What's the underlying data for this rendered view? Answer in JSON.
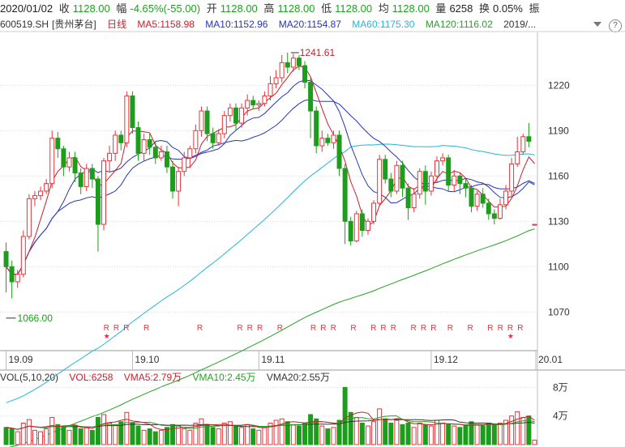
{
  "quote": {
    "date": "2020/01/02",
    "close_label": "收",
    "close": "1128.00",
    "change_label": "幅",
    "change": "-4.65%(-55.00)",
    "open_label": "开",
    "open": "1128.00",
    "high_label": "高",
    "high": "1128.00",
    "low_label": "低",
    "low": "1128.00",
    "avg_label": "均",
    "avg": "1128.00",
    "volume_label": "量",
    "volume": "6258",
    "turnover_label": "换",
    "turnover": "0.05%",
    "amplitude_label": "振"
  },
  "ma_bar": {
    "symbol": "600519.SH",
    "name": "[贵州茅台]",
    "period": "日线",
    "ma5": "MA5:1158.98",
    "ma10": "MA10:1152.96",
    "ma20": "MA20:1154.87",
    "ma60": "MA60:1175.30",
    "ma120": "MA120:1116.02",
    "date_short": "2019/...",
    "help": "?"
  },
  "volume_bar": {
    "params": "VOL(5,10,20)",
    "vol": "VOL:6258",
    "vma5": "VMA5:2.79万",
    "vma10": "VMA10:2.45万",
    "vma20": "VMA20:2.55万"
  },
  "colors": {
    "up": "#e8333a",
    "down": "#1c9d1c",
    "ma5": "#c8202a",
    "ma10": "#2536b8",
    "ma20": "#2536b8",
    "ma60": "#25b6d6",
    "ma120": "#23a323",
    "grid": "#dcdcdc"
  },
  "chart_data": {
    "type": "candlestick",
    "price_ticks": [
      1220,
      1190,
      1160,
      1130,
      1100,
      1070
    ],
    "price_range": [
      1045,
      1255
    ],
    "date_labels": [
      "19.09",
      "19.10",
      "19.11",
      "19.12",
      "20.01"
    ],
    "annotations": {
      "high": "1241.61",
      "low": "1066.00"
    },
    "volume_ticks": [
      "8万",
      "4万"
    ],
    "volume_range": [
      0,
      85000
    ],
    "marker": "R",
    "candles": [
      [
        1110,
        1100,
        1116,
        1083
      ],
      [
        1100,
        1090,
        1104,
        1079
      ],
      [
        1090,
        1095,
        1098,
        1086
      ],
      [
        1095,
        1120,
        1124,
        1093
      ],
      [
        1120,
        1145,
        1148,
        1118
      ],
      [
        1145,
        1147,
        1150,
        1140
      ],
      [
        1147,
        1150,
        1153,
        1144
      ],
      [
        1150,
        1155,
        1158,
        1148
      ],
      [
        1155,
        1185,
        1190,
        1152
      ],
      [
        1185,
        1178,
        1189,
        1172
      ],
      [
        1178,
        1166,
        1180,
        1160
      ],
      [
        1166,
        1172,
        1176,
        1163
      ],
      [
        1172,
        1162,
        1176,
        1156
      ],
      [
        1162,
        1153,
        1165,
        1148
      ],
      [
        1153,
        1165,
        1168,
        1150
      ],
      [
        1165,
        1158,
        1168,
        1152
      ],
      [
        1158,
        1128,
        1160,
        1110
      ],
      [
        1128,
        1170,
        1172,
        1124
      ],
      [
        1170,
        1175,
        1180,
        1163
      ],
      [
        1175,
        1187,
        1190,
        1170
      ],
      [
        1187,
        1182,
        1190,
        1177
      ],
      [
        1182,
        1213,
        1216,
        1179
      ],
      [
        1213,
        1192,
        1216,
        1188
      ],
      [
        1192,
        1175,
        1196,
        1170
      ],
      [
        1175,
        1184,
        1188,
        1170
      ],
      [
        1184,
        1179,
        1188,
        1174
      ],
      [
        1179,
        1172,
        1183,
        1168
      ],
      [
        1172,
        1176,
        1180,
        1170
      ],
      [
        1176,
        1166,
        1180,
        1162
      ],
      [
        1166,
        1150,
        1170,
        1145
      ],
      [
        1150,
        1163,
        1166,
        1140
      ],
      [
        1163,
        1172,
        1176,
        1160
      ],
      [
        1172,
        1178,
        1180,
        1166
      ],
      [
        1178,
        1190,
        1194,
        1175
      ],
      [
        1190,
        1203,
        1206,
        1186
      ],
      [
        1203,
        1188,
        1206,
        1183
      ],
      [
        1188,
        1182,
        1192,
        1178
      ],
      [
        1182,
        1188,
        1191,
        1180
      ],
      [
        1188,
        1200,
        1203,
        1185
      ],
      [
        1200,
        1205,
        1208,
        1196
      ],
      [
        1205,
        1195,
        1208,
        1190
      ],
      [
        1195,
        1205,
        1208,
        1192
      ],
      [
        1205,
        1210,
        1214,
        1200
      ],
      [
        1210,
        1207,
        1213,
        1204
      ],
      [
        1207,
        1208,
        1210,
        1203
      ],
      [
        1208,
        1213,
        1216,
        1206
      ],
      [
        1213,
        1221,
        1226,
        1210
      ],
      [
        1221,
        1225,
        1230,
        1218
      ],
      [
        1225,
        1235,
        1240,
        1222
      ],
      [
        1235,
        1232,
        1241.6,
        1228
      ],
      [
        1232,
        1238,
        1241,
        1229
      ],
      [
        1238,
        1233,
        1240,
        1230
      ],
      [
        1233,
        1222,
        1236,
        1218
      ],
      [
        1222,
        1203,
        1225,
        1185
      ],
      [
        1203,
        1180,
        1206,
        1175
      ],
      [
        1180,
        1185,
        1190,
        1176
      ],
      [
        1185,
        1182,
        1188,
        1180
      ],
      [
        1182,
        1187,
        1190,
        1178
      ],
      [
        1187,
        1165,
        1190,
        1160
      ],
      [
        1165,
        1130,
        1168,
        1115
      ],
      [
        1130,
        1117,
        1133,
        1114
      ],
      [
        1117,
        1135,
        1137,
        1116
      ],
      [
        1135,
        1124,
        1138,
        1120
      ],
      [
        1124,
        1130,
        1132,
        1121
      ],
      [
        1130,
        1142,
        1144,
        1128
      ],
      [
        1142,
        1171,
        1174,
        1140
      ],
      [
        1171,
        1158,
        1174,
        1155
      ],
      [
        1158,
        1150,
        1162,
        1146
      ],
      [
        1150,
        1167,
        1170,
        1148
      ],
      [
        1167,
        1152,
        1170,
        1146
      ],
      [
        1152,
        1139,
        1155,
        1131
      ],
      [
        1139,
        1148,
        1152,
        1136
      ],
      [
        1148,
        1163,
        1165,
        1145
      ],
      [
        1163,
        1150,
        1167,
        1141
      ],
      [
        1150,
        1160,
        1163,
        1147
      ],
      [
        1160,
        1170,
        1173,
        1156
      ],
      [
        1170,
        1172,
        1175,
        1167
      ],
      [
        1172,
        1154,
        1174,
        1150
      ],
      [
        1154,
        1160,
        1164,
        1150
      ],
      [
        1160,
        1155,
        1162,
        1148
      ],
      [
        1155,
        1152,
        1158,
        1146
      ],
      [
        1152,
        1140,
        1154,
        1136
      ],
      [
        1140,
        1148,
        1150,
        1137
      ],
      [
        1148,
        1142,
        1152,
        1139
      ],
      [
        1142,
        1135,
        1145,
        1131
      ],
      [
        1135,
        1132,
        1138,
        1128
      ],
      [
        1132,
        1141,
        1145,
        1131
      ],
      [
        1141,
        1150,
        1154,
        1138
      ],
      [
        1150,
        1168,
        1172,
        1146
      ],
      [
        1168,
        1176,
        1186,
        1166
      ],
      [
        1176,
        1186,
        1188,
        1174
      ],
      [
        1186,
        1183,
        1195,
        1179
      ],
      [
        1128,
        1128,
        1128,
        1128
      ]
    ],
    "volume": [
      24000,
      22000,
      18000,
      30000,
      35000,
      20000,
      18000,
      22000,
      38000,
      28000,
      25000,
      20000,
      27000,
      22000,
      24000,
      20000,
      38000,
      42000,
      30000,
      28000,
      32000,
      45000,
      30000,
      26000,
      20000,
      22000,
      18000,
      20000,
      24000,
      28000,
      26000,
      22000,
      20000,
      30000,
      36000,
      28000,
      24000,
      22000,
      30000,
      32000,
      26000,
      24000,
      28000,
      22000,
      20000,
      24000,
      30000,
      34000,
      36000,
      32000,
      28000,
      26000,
      30000,
      42000,
      36000,
      26000,
      22000,
      24000,
      34000,
      80000,
      45000,
      38000,
      30000,
      26000,
      32000,
      50000,
      36000,
      30000,
      34000,
      28000,
      30000,
      24000,
      30000,
      28000,
      26000,
      34000,
      30000,
      28000,
      26000,
      24000,
      26000,
      32000,
      28000,
      26000,
      30000,
      28000,
      30000,
      34000,
      40000,
      46000,
      38000,
      40000,
      6258
    ],
    "r_marks": [
      [
        30,
        "R"
      ],
      [
        33,
        "R"
      ],
      [
        36,
        "R"
      ],
      [
        42,
        "R"
      ],
      [
        58,
        "R"
      ],
      [
        70,
        "R"
      ],
      [
        73,
        "R"
      ],
      [
        76,
        "R"
      ],
      [
        82,
        "R"
      ],
      [
        92,
        "R"
      ],
      [
        95,
        "R"
      ],
      [
        98,
        "R"
      ],
      [
        104,
        "R"
      ],
      [
        110,
        "R"
      ],
      [
        113,
        "R"
      ],
      [
        116,
        "R"
      ],
      [
        122,
        "R"
      ],
      [
        125,
        "R"
      ],
      [
        128,
        "R"
      ],
      [
        133,
        "R"
      ],
      [
        139,
        "R"
      ],
      [
        145,
        "R"
      ],
      [
        148,
        "R"
      ],
      [
        151,
        "R"
      ],
      [
        154,
        "R"
      ]
    ],
    "star_marks": [
      30,
      151
    ]
  }
}
